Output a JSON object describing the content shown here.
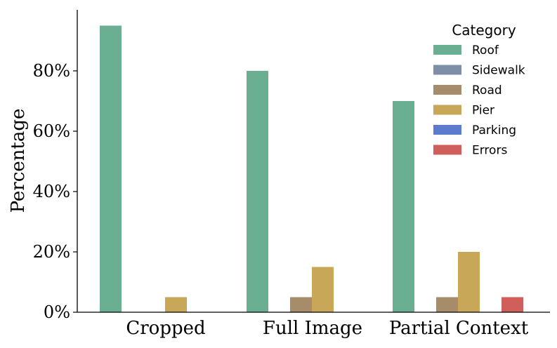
{
  "chart_data": {
    "type": "bar",
    "categories": [
      "Cropped",
      "Full Image",
      "Partial Context"
    ],
    "series": [
      {
        "name": "Roof",
        "values": [
          95,
          80,
          70
        ],
        "color": "#6aaf91"
      },
      {
        "name": "Sidewalk",
        "values": [
          0,
          0,
          0
        ],
        "color": "#7c8fa6"
      },
      {
        "name": "Road",
        "values": [
          0,
          5,
          5
        ],
        "color": "#a68c68"
      },
      {
        "name": "Pier",
        "values": [
          5,
          15,
          20
        ],
        "color": "#c8a858"
      },
      {
        "name": "Parking",
        "values": [
          0,
          0,
          0
        ],
        "color": "#5a7bce"
      },
      {
        "name": "Errors",
        "values": [
          0,
          0,
          5
        ],
        "color": "#d05e5a"
      }
    ],
    "title": "",
    "xlabel": "",
    "ylabel": "Percentage",
    "ylim": [
      0,
      100
    ],
    "yticks": [
      0,
      20,
      40,
      60,
      80
    ],
    "ytick_format": "percent",
    "legend": {
      "title": "Category",
      "placement": "top-right"
    },
    "grid": false
  }
}
